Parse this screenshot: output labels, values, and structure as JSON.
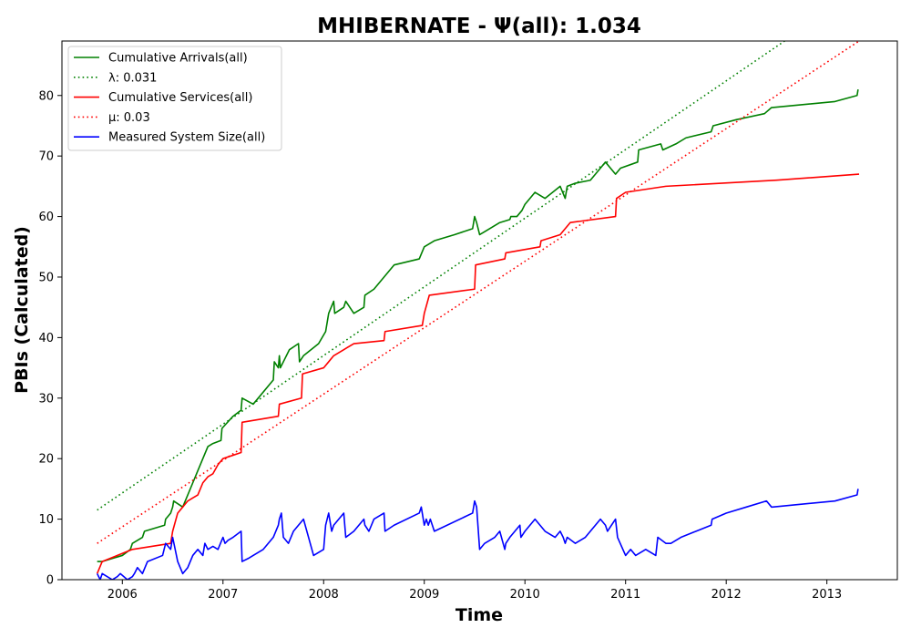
{
  "chart_data": {
    "type": "line",
    "title": "MHIBERNATE -  Ψ(all): 1.034",
    "xlabel": "Time",
    "ylabel": "PBIs (Calculated)",
    "xlim": [
      2005.4,
      2013.7
    ],
    "ylim": [
      0,
      89
    ],
    "x_ticks": [
      2006,
      2007,
      2008,
      2009,
      2010,
      2011,
      2012,
      2013
    ],
    "y_ticks": [
      0,
      10,
      20,
      30,
      40,
      50,
      60,
      70,
      80
    ],
    "grid": false,
    "legend": "upper-left",
    "series": [
      {
        "name": "Cumulative Arrivals(all)",
        "color": "#008000",
        "style": "solid",
        "x": [
          2005.75,
          2005.8,
          2006.0,
          2006.08,
          2006.1,
          2006.2,
          2006.22,
          2006.42,
          2006.43,
          2006.48,
          2006.5,
          2006.51,
          2006.6,
          2006.65,
          2006.7,
          2006.75,
          2006.8,
          2006.85,
          2006.9,
          2006.98,
          2006.99,
          2007.1,
          2007.18,
          2007.19,
          2007.3,
          2007.5,
          2007.51,
          2007.55,
          2007.56,
          2007.57,
          2007.6,
          2007.66,
          2007.75,
          2007.76,
          2007.8,
          2007.95,
          2008.02,
          2008.05,
          2008.1,
          2008.11,
          2008.2,
          2008.22,
          2008.3,
          2008.4,
          2008.41,
          2008.5,
          2008.6,
          2008.7,
          2008.95,
          2009.0,
          2009.1,
          2009.3,
          2009.48,
          2009.5,
          2009.52,
          2009.55,
          2009.6,
          2009.75,
          2009.85,
          2009.86,
          2009.92,
          2009.97,
          2010.0,
          2010.05,
          2010.1,
          2010.2,
          2010.35,
          2010.4,
          2010.42,
          2010.5,
          2010.65,
          2010.7,
          2010.75,
          2010.8,
          2010.85,
          2010.9,
          2010.95,
          2011.12,
          2011.13,
          2011.35,
          2011.37,
          2011.5,
          2011.6,
          2011.85,
          2011.87,
          2012.1,
          2012.38,
          2012.45,
          2013.08,
          2013.3,
          2013.31
        ],
        "y": [
          3,
          3,
          4,
          5,
          6,
          7,
          8,
          9,
          10,
          11,
          12,
          13,
          12,
          14,
          16,
          18,
          20,
          22,
          22.5,
          23,
          25,
          27,
          28,
          30,
          29,
          33,
          36,
          35,
          37,
          35,
          36,
          38,
          39,
          36,
          37,
          39,
          41,
          44,
          46,
          44,
          45,
          46,
          44,
          45,
          47,
          48,
          50,
          52,
          53,
          55,
          56,
          57,
          58,
          60,
          59,
          57,
          57.5,
          59,
          59.5,
          60,
          60,
          61,
          62,
          63,
          64,
          63,
          65,
          63,
          65,
          65.5,
          66,
          67,
          68,
          69,
          68,
          67,
          68,
          69,
          71,
          72,
          71,
          72,
          73,
          74,
          75,
          76,
          77,
          78,
          79,
          80,
          81
        ]
      },
      {
        "name": "λ: 0.031",
        "color": "#008000",
        "style": "dotted",
        "x": [
          2005.75,
          2012.58
        ],
        "y": [
          11.5,
          89
        ]
      },
      {
        "name": "Cumulative Services(all)",
        "color": "#ff0000",
        "style": "solid",
        "x": [
          2005.75,
          2005.8,
          2006.1,
          2006.48,
          2006.5,
          2006.55,
          2006.6,
          2006.65,
          2006.7,
          2006.75,
          2006.8,
          2006.85,
          2006.9,
          2006.95,
          2007.0,
          2007.18,
          2007.19,
          2007.55,
          2007.56,
          2007.78,
          2007.79,
          2008.0,
          2008.05,
          2008.1,
          2008.2,
          2008.3,
          2008.6,
          2008.61,
          2008.98,
          2009.0,
          2009.05,
          2009.5,
          2009.51,
          2009.8,
          2009.81,
          2010.15,
          2010.16,
          2010.35,
          2010.45,
          2010.9,
          2010.91,
          2011.0,
          2011.4,
          2012.5,
          2013.32
        ],
        "y": [
          1,
          3,
          5,
          6,
          8,
          11,
          12,
          13,
          13.5,
          14,
          16,
          17,
          17.5,
          19,
          20,
          21,
          26,
          27,
          29,
          30,
          34,
          35,
          36,
          37,
          38,
          39,
          39.5,
          41,
          42,
          44,
          47,
          48,
          52,
          53,
          54,
          55,
          56,
          57,
          59,
          60,
          63,
          64,
          65,
          66,
          67
        ]
      },
      {
        "name": "μ: 0.03",
        "color": "#ff0000",
        "style": "dotted",
        "x": [
          2005.75,
          2013.32
        ],
        "y": [
          6,
          89
        ]
      },
      {
        "name": "Measured System Size(all)",
        "color": "#0000ff",
        "style": "solid",
        "x": [
          2005.75,
          2005.78,
          2005.8,
          2005.9,
          2005.95,
          2005.98,
          2006.05,
          2006.1,
          2006.12,
          2006.15,
          2006.2,
          2006.25,
          2006.4,
          2006.43,
          2006.48,
          2006.5,
          2006.55,
          2006.6,
          2006.65,
          2006.7,
          2006.75,
          2006.8,
          2006.82,
          2006.85,
          2006.9,
          2006.95,
          2007.0,
          2007.02,
          2007.05,
          2007.1,
          2007.18,
          2007.19,
          2007.25,
          2007.3,
          2007.4,
          2007.5,
          2007.55,
          2007.56,
          2007.58,
          2007.6,
          2007.65,
          2007.7,
          2007.75,
          2007.8,
          2007.9,
          2008.0,
          2008.02,
          2008.05,
          2008.08,
          2008.1,
          2008.15,
          2008.2,
          2008.22,
          2008.3,
          2008.4,
          2008.41,
          2008.45,
          2008.5,
          2008.6,
          2008.61,
          2008.7,
          2008.95,
          2008.97,
          2009.0,
          2009.02,
          2009.04,
          2009.06,
          2009.1,
          2009.48,
          2009.5,
          2009.52,
          2009.55,
          2009.6,
          2009.7,
          2009.75,
          2009.8,
          2009.81,
          2009.85,
          2009.9,
          2009.95,
          2009.96,
          2010.0,
          2010.05,
          2010.1,
          2010.15,
          2010.2,
          2010.3,
          2010.35,
          2010.38,
          2010.4,
          2010.42,
          2010.5,
          2010.6,
          2010.65,
          2010.7,
          2010.75,
          2010.8,
          2010.82,
          2010.9,
          2010.92,
          2011.0,
          2011.05,
          2011.1,
          2011.2,
          2011.3,
          2011.32,
          2011.4,
          2011.45,
          2011.55,
          2011.7,
          2011.85,
          2011.86,
          2012.0,
          2012.2,
          2012.4,
          2012.45,
          2012.46,
          2013.08,
          2013.3,
          2013.31
        ],
        "y": [
          1,
          0,
          1,
          0,
          0.5,
          1,
          0,
          0.5,
          1,
          2,
          1,
          3,
          4,
          6,
          5,
          7,
          3,
          1,
          2,
          4,
          5,
          4,
          6,
          5,
          5.5,
          5,
          7,
          6,
          6.5,
          7,
          8,
          3,
          3.5,
          4,
          5,
          7,
          9,
          10,
          11,
          7,
          6,
          8,
          9,
          10,
          4,
          5,
          9,
          11,
          8,
          9,
          10,
          11,
          7,
          8,
          10,
          9,
          8,
          10,
          11,
          8,
          9,
          11,
          12,
          9,
          10,
          9,
          10,
          8,
          11,
          13,
          12,
          5,
          6,
          7,
          8,
          5,
          6,
          7,
          8,
          9,
          7,
          8,
          9,
          10,
          9,
          8,
          7,
          8,
          7,
          6,
          7,
          6,
          7,
          8,
          9,
          10,
          9,
          8,
          10,
          7,
          4,
          5,
          4,
          5,
          4,
          7,
          6,
          6,
          7,
          8,
          9,
          10,
          11,
          12,
          13,
          12,
          12,
          13,
          14,
          15
        ]
      }
    ],
    "legend_entries": [
      {
        "label": "Cumulative Arrivals(all)",
        "color": "#008000",
        "style": "solid"
      },
      {
        "label": "λ: 0.031",
        "color": "#008000",
        "style": "dotted"
      },
      {
        "label": "Cumulative Services(all)",
        "color": "#ff0000",
        "style": "solid"
      },
      {
        "label": "μ: 0.03",
        "color": "#ff0000",
        "style": "dotted"
      },
      {
        "label": "Measured System Size(all)",
        "color": "#0000ff",
        "style": "solid"
      }
    ]
  }
}
